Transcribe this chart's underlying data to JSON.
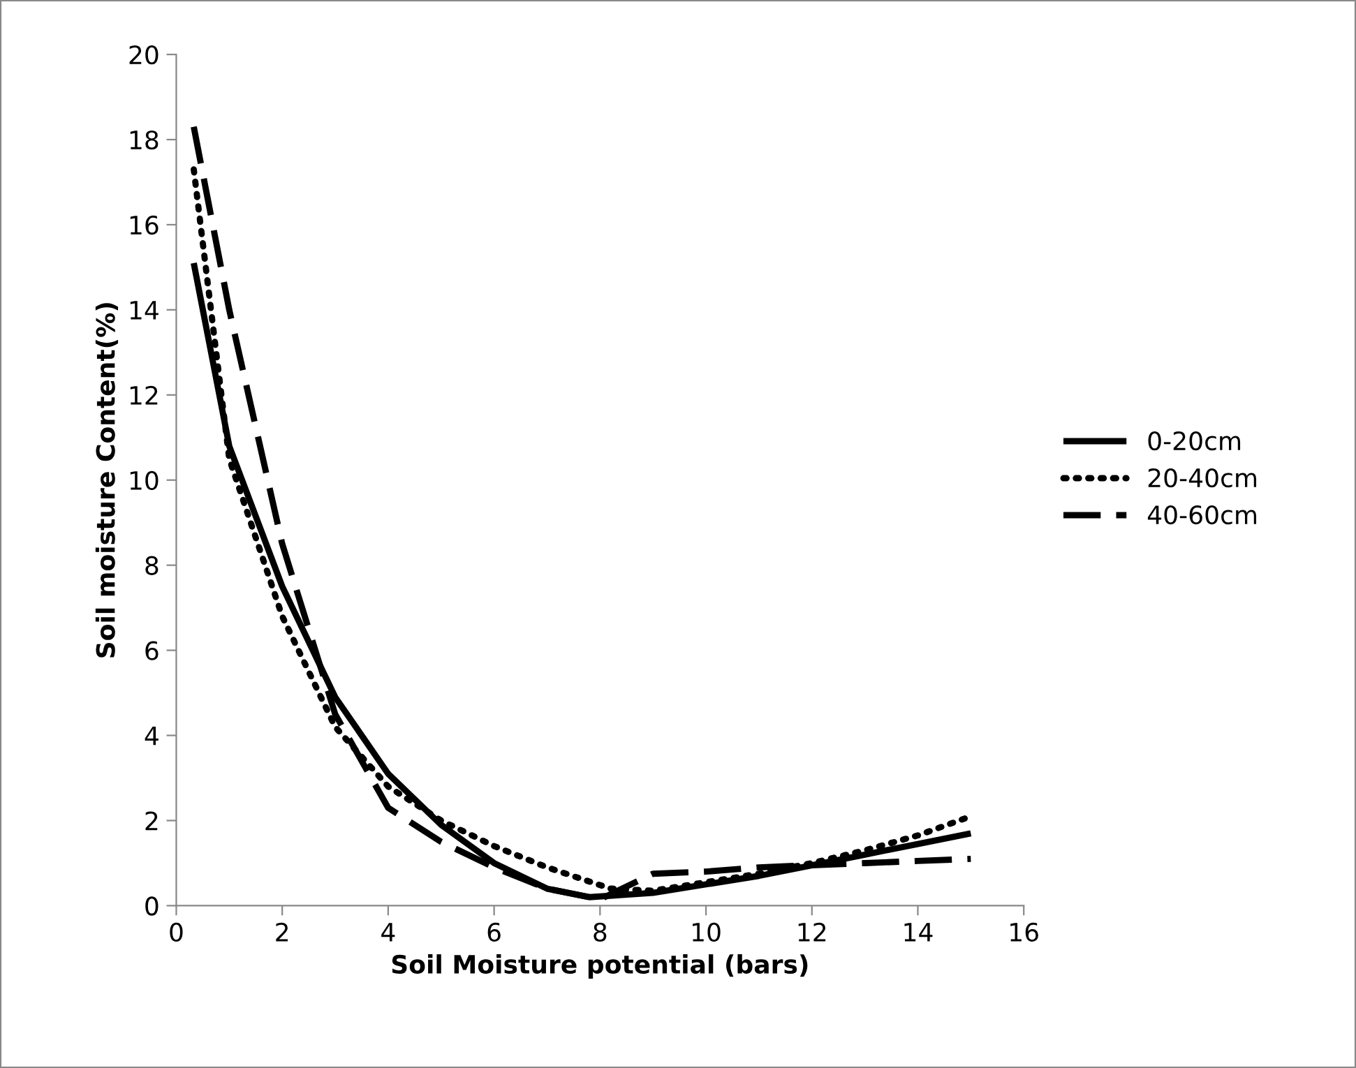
{
  "chart_data": {
    "type": "line",
    "xlabel": "Soil Moisture potential (bars)",
    "ylabel": "Soil moisture Content(%)",
    "xlim": [
      0,
      16
    ],
    "xticks": [
      0,
      2,
      4,
      6,
      8,
      10,
      12,
      14,
      16
    ],
    "ylim": [
      0,
      20
    ],
    "yticks": [
      0,
      2,
      4,
      6,
      8,
      10,
      12,
      14,
      16,
      18,
      20
    ],
    "grid": false,
    "legend": "right",
    "marker": "none",
    "series": [
      {
        "name": "0-20cm",
        "color": "#000000",
        "line_style": "solid",
        "x": [
          0.33,
          1,
          2,
          3,
          4,
          5,
          6,
          7,
          7.8,
          9,
          10,
          11,
          12,
          13,
          14,
          15
        ],
        "values": [
          15.1,
          10.8,
          7.5,
          4.9,
          3.1,
          1.9,
          1.0,
          0.4,
          0.2,
          0.3,
          0.5,
          0.7,
          0.95,
          1.2,
          1.45,
          1.7
        ]
      },
      {
        "name": "20-40cm",
        "color": "#000000",
        "line_style": "dotted",
        "x": [
          0.33,
          1,
          2,
          3,
          4,
          5,
          6,
          7,
          8.2,
          9,
          10,
          11,
          12,
          13,
          14,
          15
        ],
        "values": [
          17.3,
          10.5,
          6.8,
          4.2,
          2.8,
          2.0,
          1.4,
          0.9,
          0.4,
          0.35,
          0.55,
          0.75,
          1.0,
          1.3,
          1.65,
          2.1
        ]
      },
      {
        "name": "40-60cm",
        "color": "#000000",
        "line_style": "dashed",
        "x": [
          0.33,
          1,
          2,
          3,
          4,
          5,
          6,
          7,
          8,
          9,
          10,
          11,
          12,
          13,
          14,
          15
        ],
        "values": [
          18.3,
          14.0,
          8.5,
          4.5,
          2.3,
          1.5,
          0.9,
          0.4,
          0.15,
          0.75,
          0.8,
          0.9,
          0.95,
          1.0,
          1.05,
          1.1
        ]
      }
    ]
  }
}
